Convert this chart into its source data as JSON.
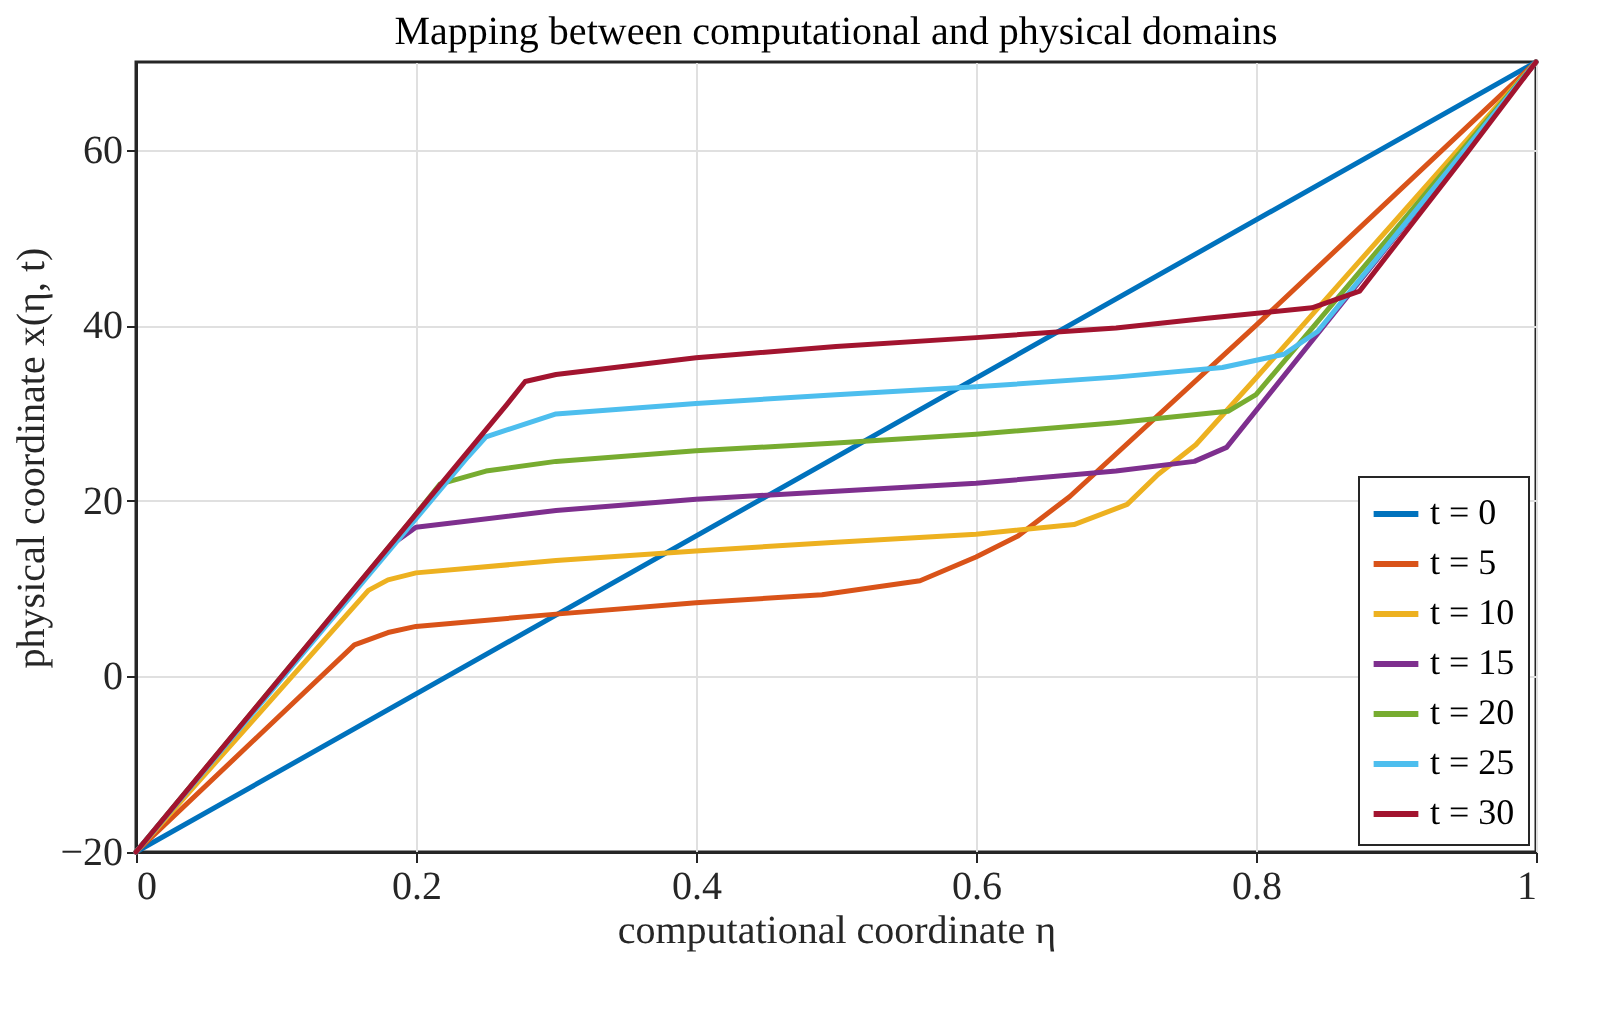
{
  "chart_data": {
    "type": "line",
    "title": "Mapping between computational and physical domains",
    "xlabel": "computational coordinate η",
    "ylabel": "physical coordinate x(η, t)",
    "xlim": [
      0,
      1
    ],
    "xticks": [
      0,
      0.2,
      0.4,
      0.6,
      0.8,
      1
    ],
    "ylim": [
      -20,
      70
    ],
    "yticks": [
      -20,
      0,
      20,
      40,
      60
    ],
    "grid": true,
    "legend": "bottom right",
    "marker": "none",
    "line_style": "solid",
    "series": [
      {
        "name": "t = 0",
        "color": "#0072bd",
        "x": [
          0,
          1
        ],
        "values": [
          -20,
          70
        ]
      },
      {
        "name": "t = 5",
        "color": "#d95319",
        "x": [
          0,
          0.156,
          0.18,
          0.2,
          0.3,
          0.4,
          0.49,
          0.56,
          0.6,
          0.63,
          0.667,
          0.8,
          0.9,
          1
        ],
        "values": [
          -20,
          3.6,
          5,
          5.7,
          7.1,
          8.4,
          9.3,
          10.9,
          13.6,
          16,
          20.5,
          40,
          55,
          70
        ]
      },
      {
        "name": "t = 10",
        "color": "#edb120",
        "x": [
          0,
          0.166,
          0.18,
          0.2,
          0.3,
          0.4,
          0.5,
          0.6,
          0.67,
          0.708,
          0.73,
          0.757,
          0.8,
          0.9,
          1
        ],
        "values": [
          -20,
          9.8,
          11,
          11.8,
          13.2,
          14.3,
          15.3,
          16.2,
          17.3,
          19.6,
          23,
          26.4,
          34,
          52,
          70
        ]
      },
      {
        "name": "t = 15",
        "color": "#7e2f8e",
        "x": [
          0,
          0.17,
          0.185,
          0.2,
          0.3,
          0.4,
          0.5,
          0.6,
          0.7,
          0.756,
          0.779,
          0.9,
          1
        ],
        "values": [
          -20,
          12.5,
          15.3,
          17,
          18.9,
          20.2,
          21.1,
          22,
          23.4,
          24.5,
          26.1,
          50.2,
          70
        ]
      },
      {
        "name": "t = 20",
        "color": "#77ac30",
        "x": [
          0,
          0.195,
          0.217,
          0.25,
          0.3,
          0.4,
          0.5,
          0.6,
          0.7,
          0.78,
          0.8,
          0.9,
          1
        ],
        "values": [
          -20,
          17.5,
          21.9,
          23.4,
          24.5,
          25.7,
          26.6,
          27.6,
          28.9,
          30.2,
          32.1,
          51,
          70
        ]
      },
      {
        "name": "t = 25",
        "color": "#4dbeee",
        "x": [
          0,
          0.237,
          0.25,
          0.3,
          0.4,
          0.5,
          0.6,
          0.7,
          0.776,
          0.82,
          0.844,
          0.9,
          1
        ],
        "values": [
          -20,
          25,
          27.3,
          29.9,
          31.1,
          32.1,
          33,
          34.1,
          35.2,
          36.7,
          39.3,
          50.3,
          70
        ]
      },
      {
        "name": "t = 30",
        "color": "#a2142f",
        "x": [
          0,
          0.265,
          0.278,
          0.3,
          0.4,
          0.5,
          0.6,
          0.7,
          0.765,
          0.84,
          0.874,
          0.95,
          1
        ],
        "values": [
          -20,
          31,
          33.6,
          34.4,
          36.3,
          37.6,
          38.6,
          39.7,
          40.8,
          42,
          43.9,
          59.5,
          70
        ]
      }
    ]
  }
}
